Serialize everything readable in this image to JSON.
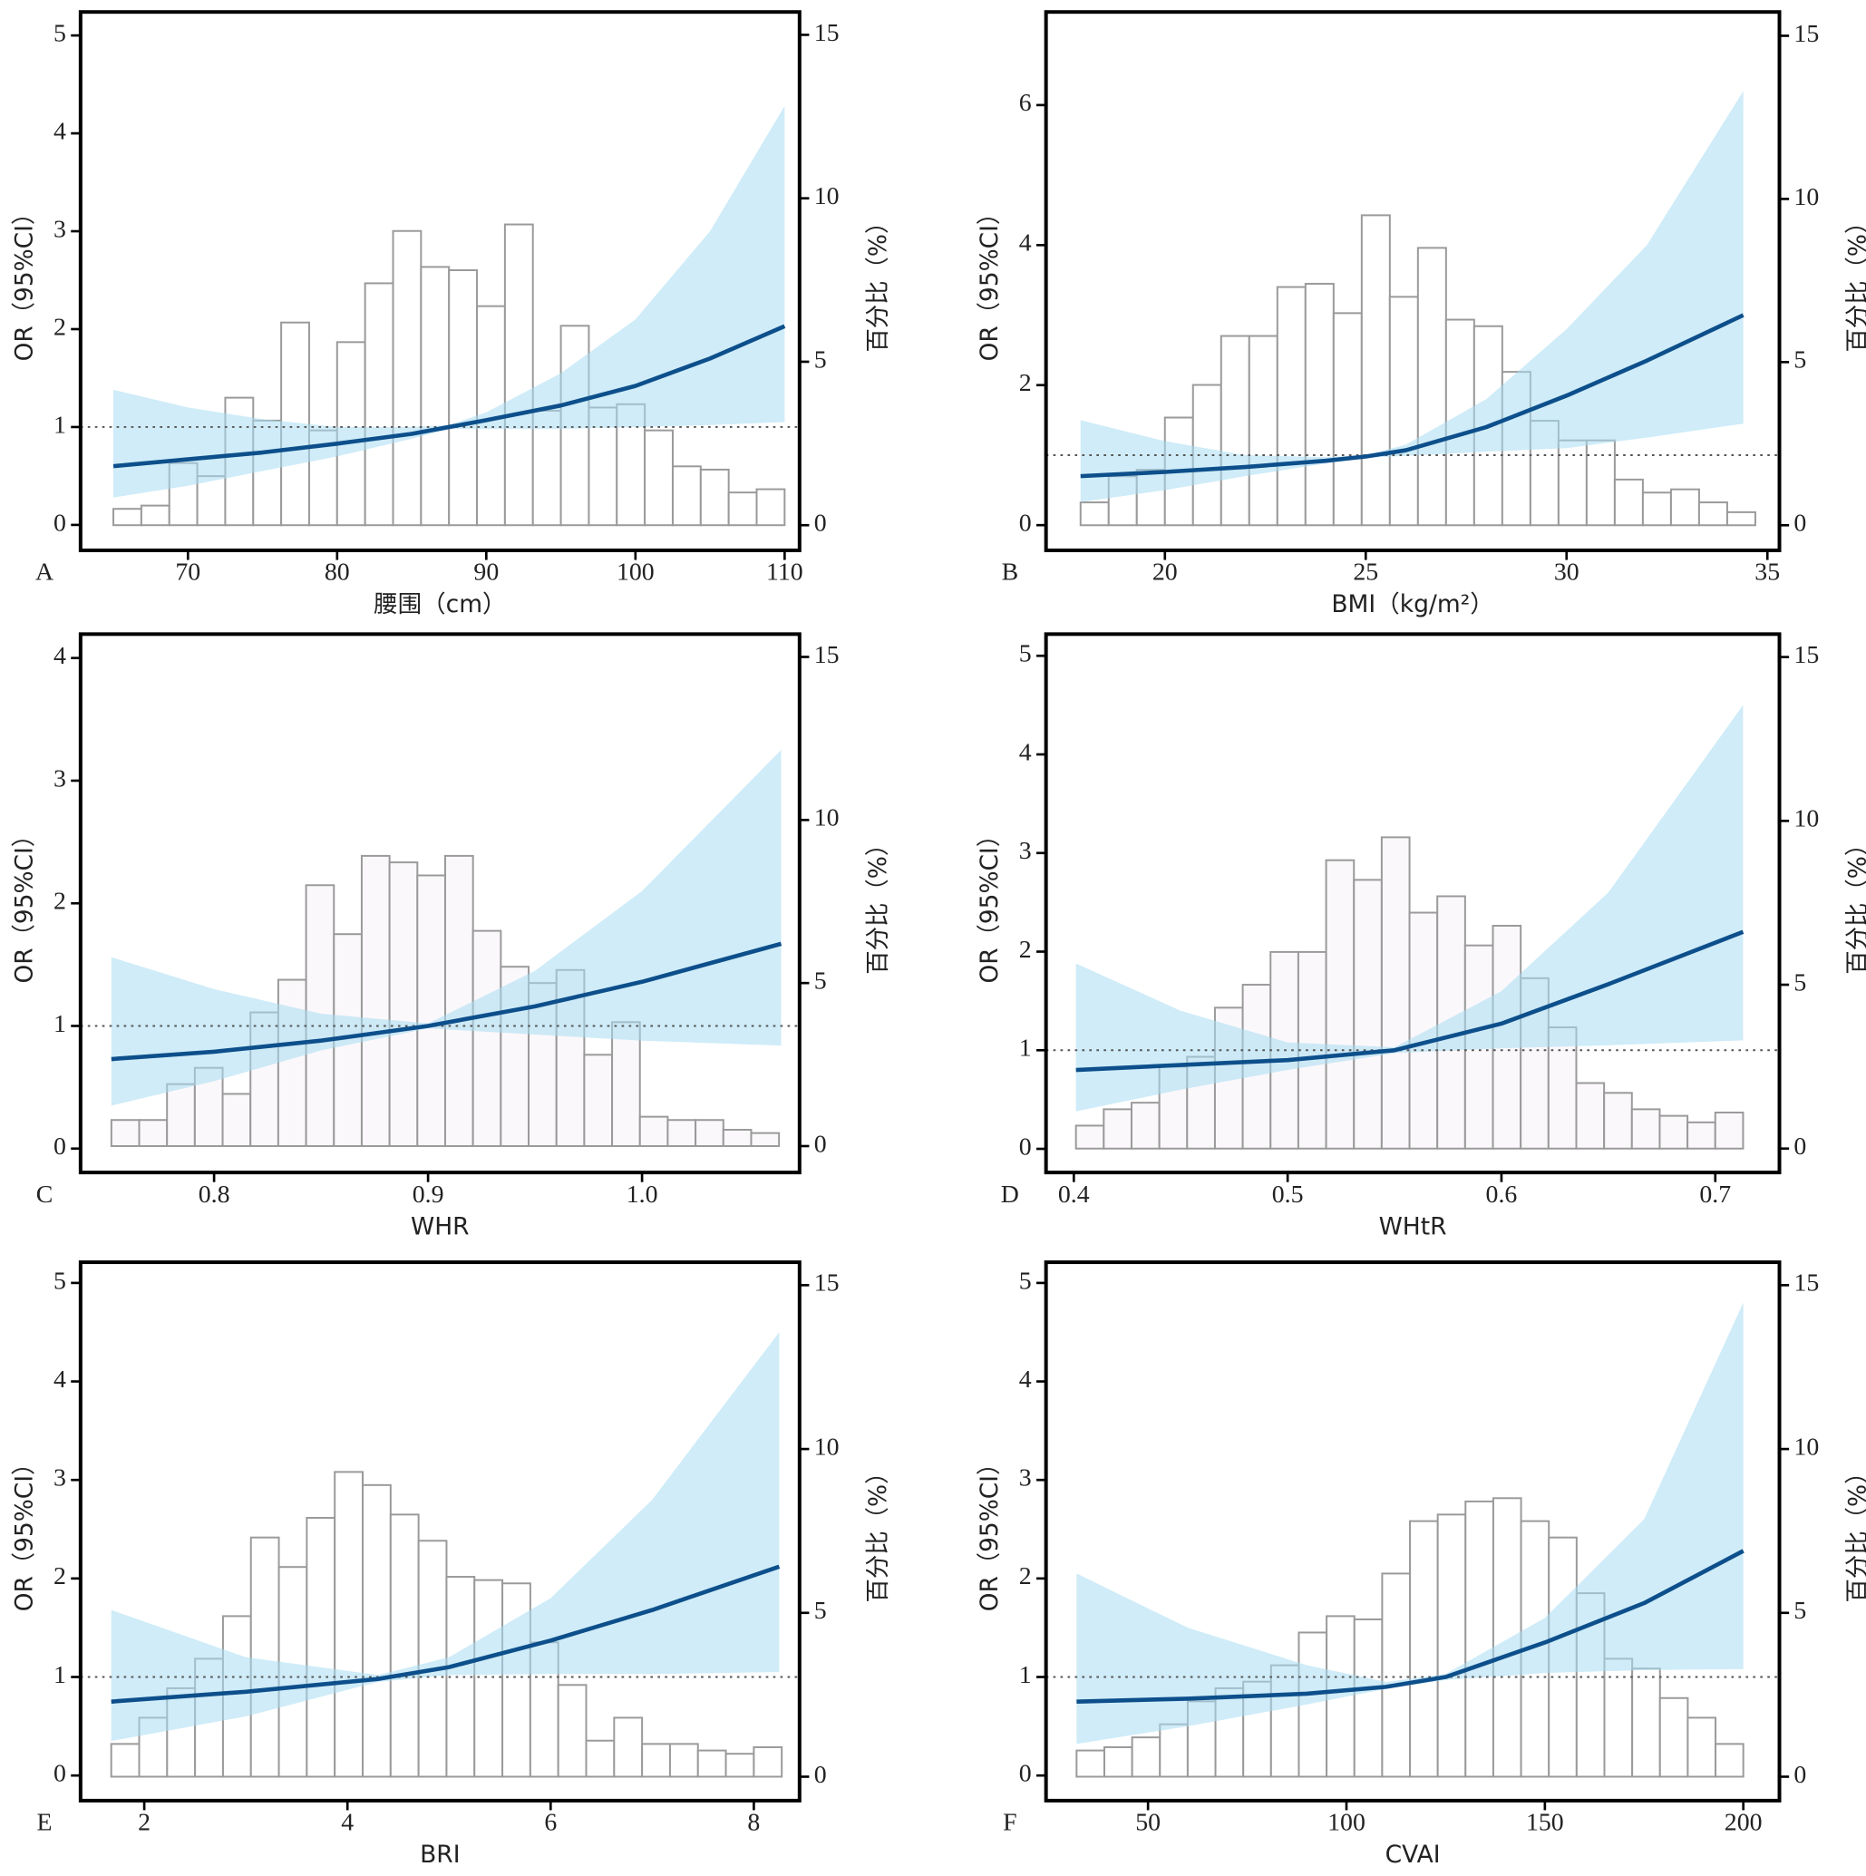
{
  "chart_data": [
    {
      "type": "line",
      "label": "A",
      "xlabel": "腰围（cm）",
      "ylabel": "OR（95%CI）",
      "y2label": "百分比（%）",
      "color": "#0d4f8b",
      "band_color": "#a8dcf2",
      "hist_color": "#ffffff",
      "hist_edge": "#9a9a9a",
      "refline": 1,
      "xlim": [
        62.8,
        111
      ],
      "ylim": [
        -0.26,
        5.24
      ],
      "y2lim": [
        -0.77,
        15.7
      ],
      "xticks": [
        70,
        80,
        90,
        100,
        110
      ],
      "yticks": [
        0,
        1,
        2,
        3,
        4,
        5
      ],
      "y2ticks": [
        0,
        5,
        10,
        15
      ],
      "x": [
        65,
        70,
        75,
        80,
        85,
        87.5,
        90,
        95,
        100,
        105,
        110
      ],
      "values": [
        0.6,
        0.67,
        0.74,
        0.83,
        0.93,
        1.0,
        1.07,
        1.22,
        1.42,
        1.7,
        2.03
      ],
      "lower": [
        0.28,
        0.4,
        0.55,
        0.7,
        0.88,
        0.98,
        0.98,
        0.98,
        1.0,
        1.02,
        1.05
      ],
      "upper": [
        1.38,
        1.2,
        1.08,
        1.0,
        1.0,
        1.02,
        1.15,
        1.55,
        2.1,
        3.0,
        4.28
      ],
      "histogram": {
        "axis": "y2",
        "bins": [
          65,
          66.875,
          68.75,
          70.625,
          72.5,
          74.375,
          76.25,
          78.125,
          80,
          81.875,
          83.75,
          85.625,
          87.5,
          89.375,
          91.25,
          93.125,
          95,
          96.875,
          98.75,
          100.625,
          102.5,
          104.375,
          106.25,
          108.125,
          110
        ],
        "values": [
          0.5,
          0.6,
          1.9,
          1.5,
          3.9,
          3.2,
          6.2,
          2.9,
          5.6,
          7.4,
          9.0,
          7.9,
          7.8,
          6.7,
          9.2,
          3.5,
          6.1,
          3.6,
          3.7,
          2.9,
          1.8,
          1.7,
          1.0,
          1.1
        ]
      }
    },
    {
      "type": "line",
      "label": "B",
      "xlabel": "BMI（kg/m²）",
      "ylabel": "OR（95%CI）",
      "y2label": "百分比（%）",
      "color": "#0d4f8b",
      "band_color": "#a8dcf2",
      "hist_color": "#ffffff",
      "hist_edge": "#9a9a9a",
      "refline": 1,
      "xlim": [
        17.04,
        35.3
      ],
      "ylim": [
        -0.36,
        7.33
      ],
      "y2lim": [
        -0.77,
        15.73
      ],
      "xticks": [
        20,
        25,
        30,
        35
      ],
      "yticks": [
        0,
        2,
        4,
        6
      ],
      "y2ticks": [
        0,
        5,
        10,
        15
      ],
      "x": [
        17.9,
        20,
        22,
        24,
        25,
        26,
        28,
        30,
        32,
        34.4
      ],
      "values": [
        0.7,
        0.76,
        0.83,
        0.92,
        0.98,
        1.07,
        1.4,
        1.85,
        2.35,
        3.0
      ],
      "lower": [
        0.33,
        0.5,
        0.7,
        0.88,
        0.96,
        0.99,
        1.05,
        1.1,
        1.25,
        1.45
      ],
      "upper": [
        1.5,
        1.2,
        1.0,
        0.97,
        1.0,
        1.15,
        1.8,
        2.8,
        4.0,
        6.2
      ],
      "histogram": {
        "axis": "y2",
        "bins": [
          17.9,
          18.6,
          19.3,
          20,
          20.7,
          21.4,
          22.1,
          22.8,
          23.5,
          24.2,
          24.9,
          25.6,
          26.3,
          27,
          27.7,
          28.4,
          29.1,
          29.8,
          30.5,
          31.2,
          31.9,
          32.6,
          33.3,
          34,
          34.7
        ],
        "values": [
          0.7,
          1.5,
          1.7,
          3.3,
          4.3,
          5.8,
          5.8,
          7.3,
          7.4,
          6.5,
          9.5,
          7.0,
          8.5,
          6.3,
          6.1,
          4.7,
          3.2,
          2.6,
          2.6,
          1.4,
          1.0,
          1.1,
          0.7,
          0.4
        ]
      }
    },
    {
      "type": "line",
      "label": "C",
      "xlabel": "WHR",
      "ylabel": "OR（95%CI）",
      "y2label": "百分比（%）",
      "color": "#0d4f8b",
      "band_color": "#a8dcf2",
      "hist_color": "#fbf8fb",
      "hist_edge": "#9a9a9a",
      "refline": 1,
      "xlim": [
        0.7376,
        1.0736
      ],
      "ylim": [
        -0.195,
        4.195
      ],
      "y2lim": [
        -0.81,
        15.7
      ],
      "xticks": [
        0.8,
        0.9,
        {
          "value": 1,
          "label": "1.0"
        }
      ],
      "yticks": [
        0,
        1,
        2,
        3,
        4
      ],
      "y2ticks": [
        0,
        5,
        10,
        15
      ],
      "x": [
        0.752,
        0.8,
        0.85,
        0.9,
        0.95,
        1.0,
        1.065
      ],
      "values": [
        0.73,
        0.79,
        0.88,
        1.0,
        1.16,
        1.36,
        1.67
      ],
      "lower": [
        0.35,
        0.55,
        0.8,
        0.98,
        0.93,
        0.88,
        0.84
      ],
      "upper": [
        1.56,
        1.3,
        1.1,
        1.02,
        1.45,
        2.1,
        3.25
      ],
      "histogram": {
        "axis": "y2",
        "bins": [
          0.752,
          0.765,
          0.778,
          0.791,
          0.804,
          0.817,
          0.83,
          0.843,
          0.856,
          0.869,
          0.882,
          0.895,
          0.908,
          0.921,
          0.934,
          0.947,
          0.96,
          0.973,
          0.986,
          0.999,
          1.012,
          1.025,
          1.038,
          1.051,
          1.064
        ],
        "values": [
          0.8,
          0.8,
          1.9,
          2.4,
          1.6,
          4.1,
          5.1,
          8.0,
          6.5,
          8.9,
          8.7,
          8.3,
          8.9,
          6.6,
          5.5,
          5.0,
          5.4,
          2.8,
          3.8,
          0.9,
          0.8,
          0.8,
          0.5,
          0.4
        ]
      }
    },
    {
      "type": "line",
      "label": "D",
      "xlabel": "WHtR",
      "ylabel": "OR（95%CI）",
      "y2label": "百分比（%）",
      "color": "#0d4f8b",
      "band_color": "#a8dcf2",
      "hist_color": "#fbf8fb",
      "hist_edge": "#9a9a9a",
      "refline": 1,
      "xlim": [
        0.387,
        0.73
      ],
      "ylim": [
        -0.24,
        5.22
      ],
      "y2lim": [
        -0.73,
        15.7
      ],
      "xticks": [
        0.4,
        0.5,
        0.6,
        0.7
      ],
      "yticks": [
        0,
        1,
        2,
        3,
        4,
        5
      ],
      "y2ticks": [
        0,
        5,
        10,
        15
      ],
      "x": [
        0.401,
        0.45,
        0.5,
        0.55,
        0.6,
        0.65,
        0.713
      ],
      "values": [
        0.8,
        0.85,
        0.9,
        1.0,
        1.27,
        1.67,
        2.2
      ],
      "lower": [
        0.38,
        0.6,
        0.8,
        0.97,
        1.02,
        1.05,
        1.1
      ],
      "upper": [
        1.88,
        1.4,
        1.08,
        1.03,
        1.6,
        2.6,
        4.5
      ],
      "histogram": {
        "axis": "y2",
        "bins": [
          0.401,
          0.414,
          0.427,
          0.44,
          0.453,
          0.466,
          0.479,
          0.492,
          0.505,
          0.518,
          0.531,
          0.544,
          0.557,
          0.57,
          0.583,
          0.596,
          0.609,
          0.622,
          0.635,
          0.648,
          0.661,
          0.674,
          0.687,
          0.7,
          0.713
        ],
        "values": [
          0.7,
          1.2,
          1.4,
          2.5,
          2.8,
          4.3,
          5.0,
          6.0,
          6.0,
          8.8,
          8.2,
          9.5,
          7.2,
          7.7,
          6.2,
          6.8,
          5.2,
          3.7,
          2.0,
          1.7,
          1.2,
          1.0,
          0.8,
          1.1
        ]
      }
    },
    {
      "type": "line",
      "label": "E",
      "xlabel": "BRI",
      "ylabel": "OR（95%CI）",
      "y2label": "百分比（%）",
      "color": "#0d4f8b",
      "band_color": "#a8dcf2",
      "hist_color": "#ffffff",
      "hist_edge": "#9a9a9a",
      "refline": 1,
      "xlim": [
        1.373,
        8.45
      ],
      "ylim": [
        -0.255,
        5.21
      ],
      "y2lim": [
        -0.73,
        15.7
      ],
      "xticks": [
        2,
        4,
        6,
        8
      ],
      "yticks": [
        0,
        1,
        2,
        3,
        4,
        5
      ],
      "y2ticks": [
        0,
        5,
        10,
        15
      ],
      "x": [
        1.675,
        3,
        4.3,
        5,
        6,
        7,
        8.25
      ],
      "values": [
        0.75,
        0.85,
        0.98,
        1.1,
        1.37,
        1.68,
        2.12
      ],
      "lower": [
        0.35,
        0.6,
        0.95,
        1.02,
        1.03,
        1.03,
        1.05
      ],
      "upper": [
        1.68,
        1.2,
        1.02,
        1.2,
        1.8,
        2.8,
        4.5
      ],
      "histogram": {
        "axis": "y2",
        "bins": [
          1.675,
          1.95,
          2.225,
          2.5,
          2.775,
          3.05,
          3.325,
          3.6,
          3.875,
          4.15,
          4.425,
          4.7,
          4.975,
          5.25,
          5.525,
          5.8,
          6.075,
          6.35,
          6.625,
          6.9,
          7.175,
          7.45,
          7.725,
          8,
          8.275
        ],
        "values": [
          1.0,
          1.8,
          2.7,
          3.6,
          4.9,
          7.3,
          6.4,
          7.9,
          9.3,
          8.9,
          8.0,
          7.2,
          6.1,
          6.0,
          5.9,
          4.1,
          2.8,
          1.1,
          1.8,
          1.0,
          1.0,
          0.8,
          0.7,
          0.9
        ]
      }
    },
    {
      "type": "line",
      "label": "F",
      "xlabel": "CVAI",
      "ylabel": "OR（95%CI）",
      "y2label": "百分比（%）",
      "color": "#0d4f8b",
      "band_color": "#a8dcf2",
      "hist_color": "#ffffff",
      "hist_edge": "#9a9a9a",
      "refline": 1,
      "xlim": [
        24.3,
        209.1
      ],
      "ylim": [
        -0.255,
        5.21
      ],
      "y2lim": [
        -0.73,
        15.7
      ],
      "xticks": [
        50,
        100,
        150,
        200
      ],
      "yticks": [
        0,
        1,
        2,
        3,
        4,
        5
      ],
      "y2ticks": [
        0,
        5,
        10,
        15
      ],
      "x": [
        32,
        60,
        90,
        110,
        125,
        150,
        175,
        200
      ],
      "values": [
        0.75,
        0.78,
        0.83,
        0.9,
        1.0,
        1.35,
        1.75,
        2.28
      ],
      "lower": [
        0.32,
        0.5,
        0.72,
        0.88,
        0.97,
        1.04,
        1.07,
        1.08
      ],
      "upper": [
        2.05,
        1.5,
        1.12,
        0.95,
        1.03,
        1.6,
        2.6,
        4.8
      ],
      "histogram": {
        "axis": "y2",
        "bins": [
          32,
          39,
          46,
          53,
          60,
          67,
          74,
          81,
          88,
          95,
          102,
          109,
          116,
          123,
          130,
          137,
          144,
          151,
          158,
          165,
          172,
          179,
          186,
          193,
          200
        ],
        "values": [
          0.8,
          0.9,
          1.2,
          1.6,
          2.3,
          2.7,
          2.9,
          3.4,
          4.4,
          4.9,
          4.8,
          6.2,
          7.8,
          8.0,
          8.4,
          8.5,
          7.8,
          7.3,
          5.6,
          3.6,
          3.3,
          2.4,
          1.8,
          1.0
        ]
      }
    }
  ]
}
